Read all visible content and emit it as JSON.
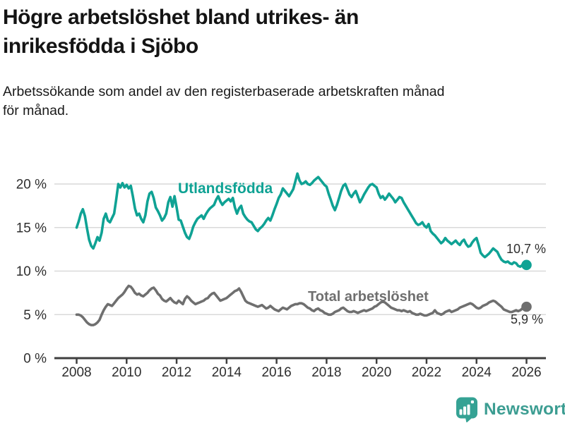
{
  "header": {
    "title": "Högre arbetslöshet bland utrikes- än\ninrikesfödda i Sjöbo",
    "subtitle": "Arbetssökande som andel av den registerbaserade arbetskraften månad\nför månad."
  },
  "footer": {
    "brand_label": "Newsworthy",
    "brand_color": "#3c9d92"
  },
  "chart_data": {
    "type": "line",
    "title": "Högre arbetslöshet bland utrikes- än inrikesfödda i Sjöbo",
    "subtitle": "Arbetssökande som andel av den registerbaserade arbetskraften månad för månad.",
    "xlabel": "",
    "ylabel": "",
    "unit": "%",
    "x_unit": "month",
    "x_start": "2008-01",
    "x_end": "2026-01",
    "x_ticks": [
      2008,
      2010,
      2012,
      2014,
      2016,
      2018,
      2020,
      2022,
      2024,
      2026
    ],
    "y_ticks": [
      0,
      5,
      10,
      15,
      20
    ],
    "y_tick_suffix": " %",
    "ylim": [
      0,
      21.5
    ],
    "grid": "horizontal-only",
    "legend_position": "inline-labels",
    "colors": {
      "axis": "#3f3f3f",
      "gridline": "#d9d9d9",
      "tick_text": "#2e2e2e"
    },
    "series": [
      {
        "name": "Utlandsfödda",
        "color": "#0fa294",
        "end_label": "10,7 %",
        "end_value": 10.7,
        "values": [
          15.0,
          15.7,
          16.6,
          17.1,
          16.3,
          14.9,
          13.6,
          12.9,
          12.6,
          13.2,
          13.9,
          13.5,
          14.4,
          16.0,
          16.6,
          15.8,
          15.6,
          16.1,
          16.6,
          18.2,
          20.0,
          19.6,
          20.1,
          19.6,
          19.9,
          19.5,
          19.8,
          18.6,
          17.2,
          16.4,
          16.6,
          16.0,
          15.6,
          16.4,
          18.0,
          18.9,
          19.1,
          18.4,
          17.3,
          16.9,
          16.4,
          15.8,
          16.1,
          16.6,
          17.9,
          18.5,
          17.4,
          18.6,
          17.3,
          15.9,
          15.8,
          15.1,
          14.4,
          13.9,
          13.7,
          14.3,
          15.1,
          15.6,
          16.0,
          16.2,
          16.4,
          16.0,
          16.5,
          16.9,
          17.2,
          17.4,
          17.6,
          18.2,
          18.6,
          18.0,
          17.6,
          17.9,
          18.1,
          18.3,
          18.0,
          18.4,
          17.3,
          16.6,
          17.2,
          17.5,
          16.6,
          16.2,
          15.9,
          15.7,
          15.6,
          15.2,
          14.8,
          14.6,
          14.9,
          15.1,
          15.4,
          15.8,
          16.1,
          15.8,
          16.4,
          17.1,
          17.7,
          18.4,
          18.8,
          19.5,
          19.2,
          18.9,
          18.6,
          19.0,
          19.4,
          20.3,
          21.2,
          20.4,
          20.0,
          20.1,
          20.3,
          20.0,
          19.9,
          20.1,
          20.4,
          20.6,
          20.8,
          20.5,
          20.2,
          19.9,
          19.7,
          18.9,
          18.2,
          17.5,
          17.0,
          17.6,
          18.4,
          19.2,
          19.8,
          20.0,
          19.4,
          18.8,
          18.5,
          18.9,
          19.2,
          18.6,
          17.9,
          18.3,
          18.8,
          19.2,
          19.6,
          19.9,
          20.0,
          19.8,
          19.6,
          18.9,
          18.4,
          18.6,
          18.2,
          18.5,
          18.9,
          18.6,
          18.3,
          17.9,
          18.2,
          18.5,
          18.4,
          17.9,
          17.5,
          17.1,
          16.7,
          16.3,
          15.9,
          15.5,
          15.3,
          15.4,
          15.6,
          15.2,
          15.0,
          15.4,
          14.6,
          14.3,
          14.1,
          13.8,
          13.5,
          13.2,
          13.4,
          13.8,
          13.5,
          13.3,
          13.1,
          13.3,
          13.5,
          13.2,
          13.0,
          13.4,
          13.6,
          13.1,
          12.8,
          12.9,
          13.3,
          13.6,
          13.8,
          13.0,
          12.1,
          11.8,
          11.6,
          11.8,
          12.0,
          12.3,
          12.6,
          12.4,
          12.2,
          11.7,
          11.3,
          11.1,
          11.0,
          11.1,
          10.9,
          10.8,
          11.0,
          10.9,
          10.6,
          10.5,
          10.7,
          10.8,
          10.7
        ]
      },
      {
        "name": "Total arbetslöshet",
        "color": "#6f6f6f",
        "end_label": "5,9 %",
        "end_value": 5.9,
        "values": [
          5.0,
          5.0,
          4.9,
          4.7,
          4.4,
          4.1,
          3.9,
          3.8,
          3.8,
          3.9,
          4.1,
          4.4,
          5.0,
          5.5,
          5.9,
          6.2,
          6.1,
          6.0,
          6.3,
          6.6,
          6.9,
          7.1,
          7.3,
          7.6,
          8.0,
          8.3,
          8.2,
          7.9,
          7.5,
          7.3,
          7.4,
          7.2,
          7.1,
          7.3,
          7.5,
          7.8,
          8.0,
          8.1,
          7.8,
          7.4,
          7.2,
          6.8,
          6.6,
          6.5,
          6.7,
          6.9,
          6.6,
          6.4,
          6.3,
          6.6,
          6.4,
          6.2,
          6.8,
          7.1,
          6.9,
          6.6,
          6.4,
          6.2,
          6.3,
          6.4,
          6.5,
          6.6,
          6.8,
          6.9,
          7.2,
          7.4,
          7.5,
          7.2,
          6.9,
          6.6,
          6.7,
          6.8,
          6.9,
          7.1,
          7.3,
          7.5,
          7.7,
          7.8,
          8.0,
          7.6,
          7.1,
          6.6,
          6.4,
          6.3,
          6.2,
          6.1,
          6.0,
          5.9,
          6.0,
          6.1,
          5.9,
          5.7,
          5.8,
          6.0,
          5.8,
          5.6,
          5.5,
          5.4,
          5.6,
          5.8,
          5.7,
          5.6,
          5.8,
          6.0,
          6.1,
          6.2,
          6.2,
          6.3,
          6.3,
          6.2,
          6.0,
          5.8,
          5.7,
          5.5,
          5.4,
          5.6,
          5.7,
          5.5,
          5.4,
          5.2,
          5.1,
          5.0,
          5.0,
          5.1,
          5.3,
          5.4,
          5.5,
          5.7,
          5.8,
          5.6,
          5.4,
          5.3,
          5.3,
          5.4,
          5.3,
          5.2,
          5.3,
          5.4,
          5.5,
          5.4,
          5.5,
          5.6,
          5.7,
          5.9,
          6.0,
          6.2,
          6.4,
          6.5,
          6.4,
          6.2,
          6.0,
          5.8,
          5.7,
          5.6,
          5.5,
          5.5,
          5.4,
          5.5,
          5.4,
          5.3,
          5.4,
          5.2,
          5.1,
          5.0,
          5.0,
          5.1,
          5.0,
          4.9,
          4.9,
          5.0,
          5.1,
          5.2,
          5.5,
          5.2,
          5.1,
          5.0,
          5.1,
          5.3,
          5.4,
          5.5,
          5.3,
          5.4,
          5.5,
          5.6,
          5.8,
          5.9,
          6.0,
          6.1,
          6.2,
          6.3,
          6.2,
          6.0,
          5.8,
          5.7,
          5.8,
          6.0,
          6.1,
          6.2,
          6.4,
          6.5,
          6.6,
          6.5,
          6.3,
          6.1,
          5.9,
          5.6,
          5.5,
          5.4,
          5.3,
          5.3,
          5.4,
          5.5,
          5.4,
          5.5,
          5.7,
          5.8,
          5.9
        ]
      }
    ]
  }
}
